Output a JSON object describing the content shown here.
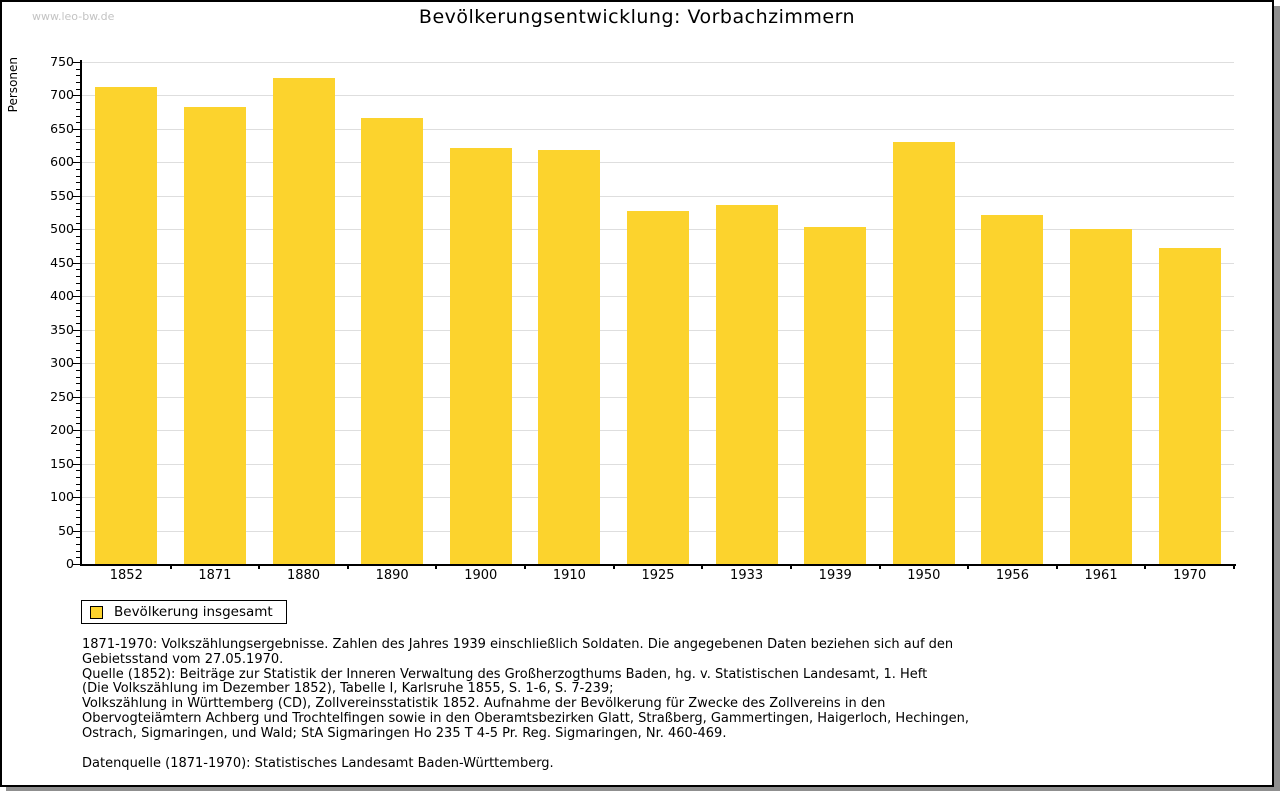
{
  "watermark": "www.leo-bw.de",
  "title": "Bevölkerungsentwicklung: Vorbachzimmern",
  "chart_data": {
    "type": "bar",
    "title": "Bevölkerungsentwicklung: Vorbachzimmern",
    "xlabel": "",
    "ylabel": "Personen",
    "categories": [
      "1852",
      "1871",
      "1880",
      "1890",
      "1900",
      "1910",
      "1925",
      "1933",
      "1939",
      "1950",
      "1956",
      "1961",
      "1970"
    ],
    "values": [
      713,
      683,
      726,
      667,
      622,
      618,
      527,
      536,
      504,
      631,
      522,
      501,
      472
    ],
    "ylim": [
      0,
      750
    ],
    "ytick_step": 50,
    "ytick_minor_step": 10,
    "grid": true,
    "bar_color": "#fcd32d",
    "grid_color": "#dedede",
    "legend": [
      {
        "label": "Bevölkerung insgesamt",
        "color": "#fcd32d"
      }
    ],
    "legend_position": "bottom-left"
  },
  "footnotes": {
    "lines": [
      "1871-1970: Volkszählungsergebnisse. Zahlen des Jahres 1939 einschließlich Soldaten. Die angegebenen Daten beziehen sich auf den",
      "Gebietsstand vom 27.05.1970.",
      "Quelle (1852): Beiträge zur Statistik der Inneren Verwaltung des Großherzogthums Baden, hg. v. Statistischen Landesamt, 1. Heft",
      "(Die Volkszählung im Dezember 1852), Tabelle I, Karlsruhe 1855, S. 1-6, S. 7-239;",
      "Volkszählung in Württemberg (CD), Zollvereinsstatistik 1852. Aufnahme der Bevölkerung für Zwecke des Zollvereins in den",
      "Obervogteiämtern Achberg und Trochtelfingen sowie in den Oberamtsbezirken Glatt, Straßberg, Gammertingen, Haigerloch, Hechingen,",
      "Ostrach, Sigmaringen, und Wald; StA Sigmaringen Ho 235 T 4-5 Pr. Reg. Sigmaringen, Nr. 460-469."
    ],
    "datasource": "Datenquelle (1871-1970): Statistisches Landesamt Baden-Württemberg."
  }
}
